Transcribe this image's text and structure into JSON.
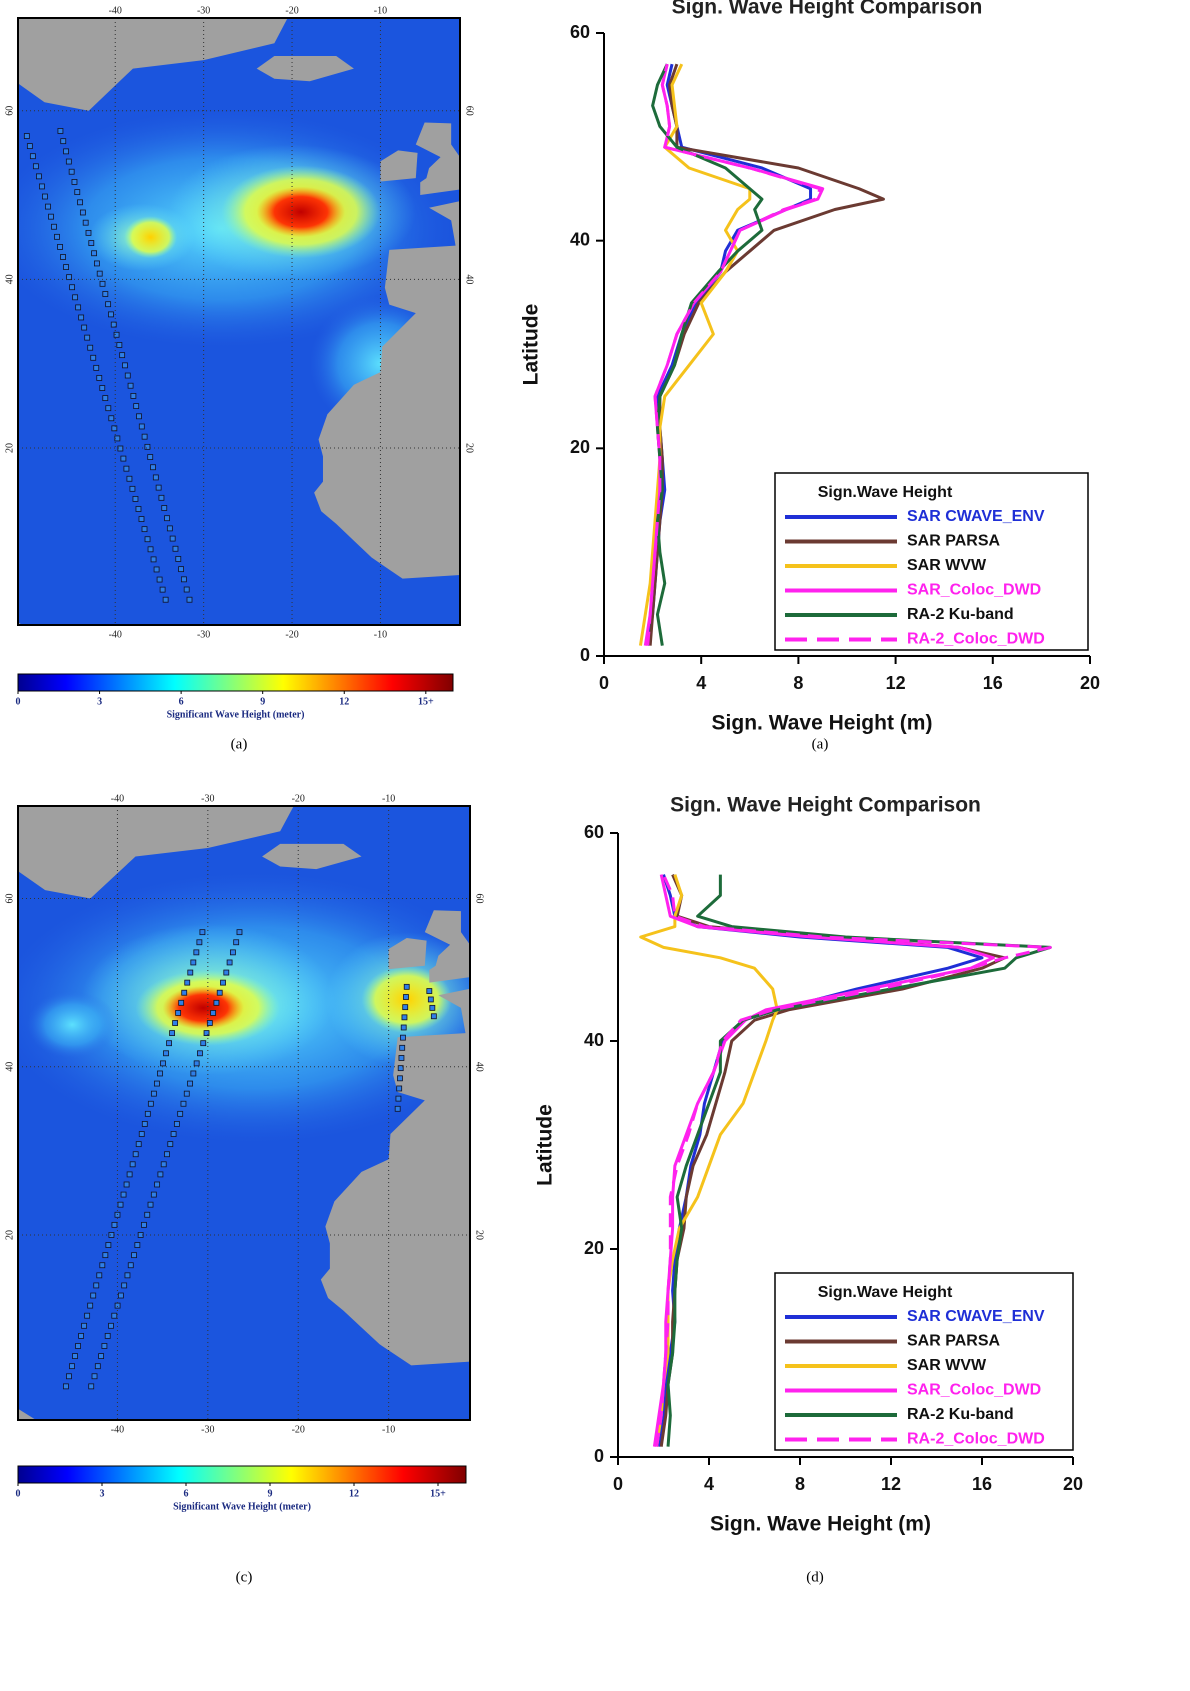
{
  "chart_data": [
    {
      "type": "map",
      "xlim": [
        -51,
        -1
      ],
      "ylim": [
        -1,
        71
      ],
      "xticks": [
        -40,
        -30,
        -20,
        -10
      ],
      "yticks": [
        20,
        40,
        60
      ],
      "colorbar": {
        "label": "Significant Wave Height (meter)",
        "lim": [
          0,
          16
        ],
        "ticks": [
          0,
          3,
          6,
          9,
          12,
          {
            "value": 15,
            "label": "15+"
          }
        ]
      },
      "caption": "(a)"
    },
    {
      "type": "line",
      "title": "Sign. Wave Height Comparison",
      "xlabel": "Sign. Wave Height (m)",
      "ylabel": "Latitude",
      "xlim": [
        0,
        20
      ],
      "ylim": [
        0,
        60
      ],
      "xticks": [
        0,
        4,
        8,
        12,
        16,
        20
      ],
      "yticks": [
        0,
        20,
        40,
        60
      ],
      "legend_title": "Sign.Wave Height",
      "legend": "lower right",
      "y": [
        1,
        4,
        7,
        10,
        13,
        16,
        19,
        22,
        25,
        28,
        31,
        34,
        37,
        39,
        41,
        43,
        44,
        45,
        47,
        49,
        51,
        53,
        55,
        57
      ],
      "series": [
        {
          "name": "SAR CWAVE_ENV",
          "color": "#1f2fd6",
          "label_color": "#1f2fd6",
          "values": [
            1.8,
            2.0,
            2.1,
            2.2,
            2.3,
            2.5,
            2.4,
            2.3,
            2.2,
            2.8,
            3.2,
            3.8,
            4.8,
            5.0,
            5.5,
            7.5,
            8.5,
            8.5,
            6.5,
            3.2,
            3.0,
            2.8,
            2.6,
            2.8
          ]
        },
        {
          "name": "SAR PARSA",
          "color": "#6b3a32",
          "label_color": "#111111",
          "values": [
            1.9,
            2.0,
            2.1,
            2.2,
            2.3,
            2.4,
            2.4,
            2.3,
            2.3,
            2.9,
            3.3,
            3.9,
            5.0,
            6.0,
            7.0,
            9.5,
            11.5,
            10.5,
            8.0,
            3.0,
            3.0,
            2.8,
            2.7,
            3.0
          ]
        },
        {
          "name": "SAR WVW",
          "color": "#f5c21b",
          "label_color": "#111111",
          "values": [
            1.5,
            1.7,
            1.9,
            2.0,
            2.1,
            2.2,
            2.3,
            2.3,
            2.5,
            3.5,
            4.5,
            4.0,
            5.0,
            5.5,
            5.0,
            5.5,
            6.0,
            6.0,
            3.5,
            2.5,
            3.0,
            2.9,
            2.8,
            3.2
          ]
        },
        {
          "name": "SAR_Coloc_DWD",
          "color": "#ff22ee",
          "label_color": "#ff22ee",
          "values": [
            1.7,
            1.9,
            2.0,
            2.1,
            2.2,
            2.3,
            2.3,
            2.2,
            2.1,
            2.6,
            3.0,
            3.7,
            4.8,
            5.2,
            5.6,
            7.5,
            8.8,
            9.0,
            6.0,
            2.5,
            2.7,
            2.6,
            2.4,
            2.6
          ]
        },
        {
          "name": "RA-2 Ku-band",
          "color": "#1d6b3a",
          "label_color": "#111111",
          "values": [
            2.4,
            2.2,
            2.5,
            2.3,
            2.2,
            2.4,
            2.3,
            2.2,
            2.3,
            2.9,
            3.2,
            3.6,
            4.7,
            5.5,
            6.5,
            6.2,
            6.5,
            6.0,
            5.0,
            3.0,
            2.3,
            2.0,
            2.2,
            2.6
          ]
        },
        {
          "name": "RA-2_Coloc_DWD",
          "color": "#ff22ee",
          "label_color": "#ff22ee",
          "dashed": true,
          "values": [
            1.8,
            1.9,
            2.0,
            2.1,
            2.2,
            2.3,
            2.3,
            2.2,
            2.1,
            2.6,
            3.0,
            3.7,
            4.8,
            5.2,
            5.6,
            7.4,
            8.7,
            8.9,
            6.0,
            2.5,
            2.7,
            2.6,
            2.4,
            2.6
          ]
        }
      ],
      "caption": "(a)"
    },
    {
      "type": "map",
      "xlim": [
        -51,
        -1
      ],
      "ylim": [
        -2,
        71
      ],
      "xticks": [
        -40,
        -30,
        -20,
        -10
      ],
      "yticks": [
        20,
        40,
        60
      ],
      "colorbar": {
        "label": "Significant Wave Height (meter)",
        "lim": [
          0,
          16
        ],
        "ticks": [
          0,
          3,
          6,
          9,
          12,
          {
            "value": 15,
            "label": "15+"
          }
        ]
      },
      "caption": "(c)"
    },
    {
      "type": "line",
      "title": "Sign. Wave Height Comparison",
      "xlabel": "Sign. Wave Height (m)",
      "ylabel": "Latitude",
      "xlim": [
        0,
        20
      ],
      "ylim": [
        0,
        60
      ],
      "xticks": [
        0,
        4,
        8,
        12,
        16,
        20
      ],
      "yticks": [
        0,
        20,
        40,
        60
      ],
      "legend_title": "Sign.Wave Height",
      "legend": "lower right",
      "y": [
        1,
        4,
        7,
        10,
        13,
        16,
        19,
        22,
        25,
        28,
        31,
        34,
        37,
        40,
        42,
        43,
        45,
        47,
        48,
        49,
        50,
        51,
        52,
        54,
        56
      ],
      "series": [
        {
          "name": "SAR CWAVE_ENV",
          "color": "#1f2fd6",
          "label_color": "#1f2fd6",
          "values": [
            1.8,
            2.0,
            2.1,
            2.3,
            2.5,
            2.4,
            2.5,
            2.7,
            3.0,
            3.2,
            3.6,
            3.8,
            4.2,
            4.6,
            5.5,
            7.0,
            10.5,
            14.5,
            16.0,
            14.5,
            8.0,
            3.5,
            2.5,
            2.3,
            2.0
          ]
        },
        {
          "name": "SAR PARSA",
          "color": "#6b3a32",
          "label_color": "#111111",
          "values": [
            1.9,
            2.1,
            2.2,
            2.4,
            2.4,
            2.5,
            2.6,
            2.9,
            3.0,
            3.3,
            3.9,
            4.3,
            4.7,
            5.0,
            6.0,
            7.5,
            12.5,
            16.0,
            17.0,
            15.0,
            9.0,
            4.0,
            2.6,
            2.8,
            2.4
          ]
        },
        {
          "name": "SAR WVW",
          "color": "#f5c21b",
          "label_color": "#111111",
          "values": [
            1.7,
            1.9,
            2.0,
            2.2,
            2.2,
            2.2,
            2.4,
            2.7,
            3.5,
            4.0,
            4.5,
            5.5,
            6.0,
            6.5,
            6.8,
            7.0,
            6.8,
            6.0,
            4.5,
            2.0,
            1.0,
            2.5,
            2.5,
            2.8,
            2.5
          ]
        },
        {
          "name": "SAR_Coloc_DWD",
          "color": "#ff22ee",
          "label_color": "#ff22ee",
          "values": [
            1.6,
            1.8,
            2.0,
            2.1,
            2.1,
            2.2,
            2.3,
            2.4,
            2.4,
            2.5,
            3.0,
            3.5,
            4.2,
            4.7,
            5.6,
            6.5,
            11.0,
            15.5,
            16.5,
            15.0,
            8.5,
            3.5,
            2.3,
            2.1,
            1.9
          ]
        },
        {
          "name": "RA-2 Ku-band",
          "color": "#1d6b3a",
          "label_color": "#111111",
          "values": [
            2.2,
            2.3,
            2.2,
            2.4,
            2.5,
            2.5,
            2.6,
            2.8,
            2.6,
            3.0,
            3.5,
            4.0,
            4.5,
            4.5,
            5.5,
            7.0,
            12.0,
            17.0,
            17.5,
            19.0,
            10.0,
            5.0,
            3.5,
            4.5,
            4.5
          ]
        },
        {
          "name": "RA-2_Coloc_DWD",
          "color": "#ff22ee",
          "label_color": "#ff22ee",
          "dashed": true,
          "values": [
            1.7,
            1.9,
            2.0,
            2.1,
            2.2,
            2.2,
            2.3,
            2.3,
            2.3,
            2.6,
            3.1,
            3.5,
            4.2,
            4.6,
            5.4,
            6.8,
            11.5,
            15.5,
            17.0,
            19.0,
            9.0,
            3.8,
            2.5,
            2.4,
            2.0
          ]
        }
      ],
      "caption": "(d)"
    }
  ]
}
